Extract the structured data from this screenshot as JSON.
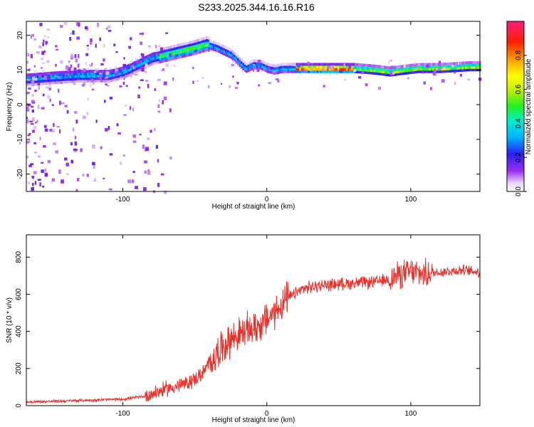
{
  "title": "S233.2025.344.16.16.R16",
  "chart_data": [
    {
      "type": "heatmap",
      "xlabel": "Height of straight line (km)",
      "ylabel": "Frequency (Hz)",
      "xlim": [
        -167,
        148
      ],
      "ylim": [
        -25,
        24
      ],
      "x_ticks": [
        -100,
        0,
        100
      ],
      "y_ticks": [
        -20,
        -10,
        0,
        10,
        20
      ],
      "colorbar": {
        "label": "Normalized spectral amplitude",
        "range": [
          0,
          1
        ],
        "ticks": [
          0.0,
          0.2,
          0.4,
          0.6,
          0.8
        ]
      },
      "ridge": {
        "x": [
          -165,
          -150,
          -130,
          -110,
          -100,
          -90,
          -80,
          -70,
          -60,
          -50,
          -42,
          -35,
          -30,
          -25,
          -20,
          -15,
          -10,
          -5,
          0,
          5,
          10,
          30,
          60,
          75,
          85,
          95,
          105,
          120,
          140,
          148
        ],
        "y": [
          7,
          7.5,
          8,
          8,
          9,
          11,
          13,
          14,
          15,
          16,
          17,
          16,
          15,
          14,
          12,
          10,
          11,
          11,
          10,
          9.5,
          10,
          10,
          10,
          9.5,
          9,
          9.5,
          10,
          10,
          10.5,
          10.5
        ]
      }
    },
    {
      "type": "line",
      "xlabel": "Height of straight line (km)",
      "ylabel": "SNR (10 * v/v)",
      "xlim": [
        -167,
        148
      ],
      "ylim": [
        0,
        920
      ],
      "x_ticks": [
        -100,
        0,
        100
      ],
      "y_ticks": [
        0,
        200,
        400,
        600,
        800
      ],
      "series_color": "#e8302a",
      "trend": {
        "x": [
          -167,
          -140,
          -120,
          -100,
          -85,
          -70,
          -55,
          -45,
          -35,
          -25,
          -15,
          -5,
          5,
          15,
          25,
          40,
          60,
          75,
          85,
          90,
          100,
          110,
          120,
          135,
          148
        ],
        "y": [
          20,
          25,
          30,
          35,
          50,
          90,
          120,
          170,
          280,
          360,
          400,
          430,
          500,
          580,
          630,
          650,
          660,
          665,
          680,
          700,
          720,
          710,
          720,
          730,
          720
        ]
      }
    }
  ]
}
